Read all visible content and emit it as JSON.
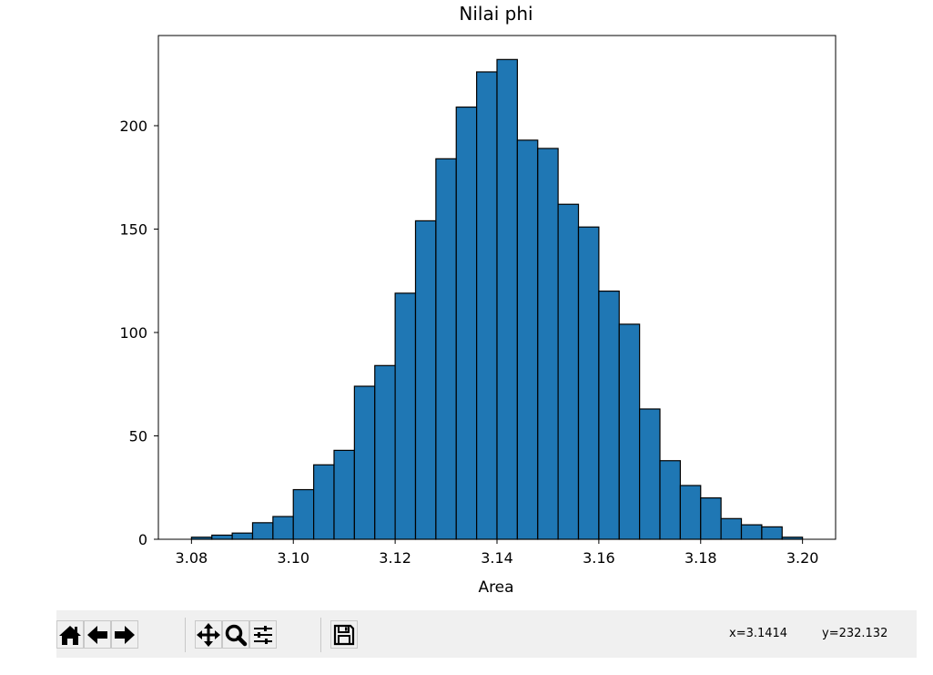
{
  "chart_data": {
    "type": "bar",
    "title": "Nilai phi",
    "xlabel": "Area",
    "ylabel": "",
    "xlim": [
      3.0735,
      3.2065
    ],
    "ylim": [
      0,
      243.6
    ],
    "xticks": [
      "3.08",
      "3.10",
      "3.12",
      "3.14",
      "3.16",
      "3.18",
      "3.20"
    ],
    "xtick_values": [
      3.08,
      3.1,
      3.12,
      3.14,
      3.16,
      3.18,
      3.2
    ],
    "yticks": [
      "0",
      "50",
      "100",
      "150",
      "200"
    ],
    "ytick_values": [
      0,
      50,
      100,
      150,
      200
    ],
    "bin_start": 3.08,
    "bin_width": 0.004,
    "values": [
      1,
      2,
      3,
      8,
      11,
      24,
      36,
      43,
      74,
      84,
      119,
      154,
      184,
      209,
      226,
      232,
      193,
      189,
      162,
      151,
      120,
      104,
      63,
      38,
      26,
      20,
      10,
      7,
      6,
      1
    ],
    "bar_color": "#1f77b4",
    "edge_color": "#000000",
    "grid": false
  },
  "toolbar": {
    "buttons": [
      {
        "name": "home-button",
        "icon": "home-icon"
      },
      {
        "name": "back-button",
        "icon": "arrow-left-icon"
      },
      {
        "name": "forward-button",
        "icon": "arrow-right-icon"
      },
      {
        "name": "pan-button",
        "icon": "move-icon"
      },
      {
        "name": "zoom-button",
        "icon": "magnifier-icon"
      },
      {
        "name": "configure-subplots-button",
        "icon": "sliders-icon"
      },
      {
        "name": "save-button",
        "icon": "floppy-disk-icon"
      }
    ],
    "coord_x": "x=3.1414",
    "coord_y": "y=232.132"
  }
}
